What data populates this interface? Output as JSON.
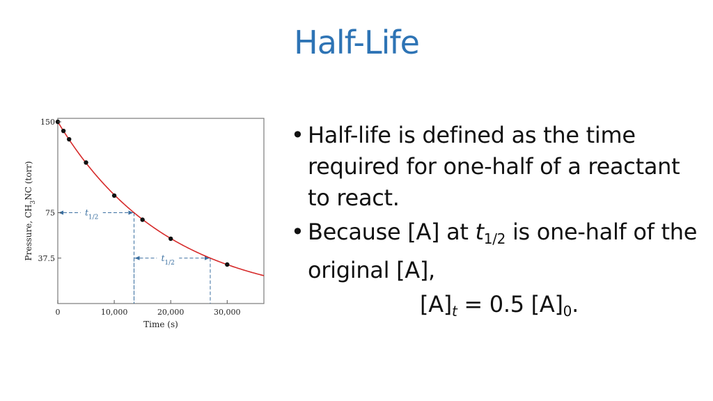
{
  "slide": {
    "title": "Half-Life"
  },
  "bullets": {
    "b1": "Half-life is defined as the time required for one-half of a reactant to react.",
    "b2_pre": "Because [A] at ",
    "b2_t": "t",
    "b2_sub": "1/2",
    "b2_post": " is one-half of the original [A],"
  },
  "equation": {
    "a": "[A]",
    "a_sub": "t",
    "mid": " = 0.5 [A]",
    "end_sub": "0",
    "end": "."
  },
  "chart_data": {
    "type": "scatter",
    "xlabel": "Time (s)",
    "ylabel": "Pressure, CH3NC (torr)",
    "xlim": [
      0,
      36500
    ],
    "ylim": [
      0,
      150
    ],
    "x_ticks": [
      {
        "value": 0,
        "label": "0"
      },
      {
        "value": 10000,
        "label": "10,000"
      },
      {
        "value": 20000,
        "label": "20,000"
      },
      {
        "value": 30000,
        "label": "30,000"
      }
    ],
    "y_ticks": [
      {
        "value": 150,
        "label": "150"
      },
      {
        "value": 75,
        "label": "75"
      },
      {
        "value": 37.5,
        "label": "37.5"
      }
    ],
    "decay_curve": {
      "p0": 150,
      "half_life_s": 13500,
      "color": "#d62a2a"
    },
    "points": {
      "x": [
        0,
        1000,
        2000,
        5000,
        10000,
        15000,
        20000,
        30000
      ],
      "y": [
        150,
        142.5,
        135.6,
        116.4,
        89.1,
        69.2,
        53.5,
        32.2
      ]
    },
    "half_life_markers": [
      {
        "label": "t",
        "sub": "1/2",
        "y": 75,
        "x_start": 0,
        "x_end": 13500
      },
      {
        "label": "t",
        "sub": "1/2",
        "y": 37.5,
        "x_start": 13500,
        "x_end": 27000
      }
    ],
    "marker_color": "#3a6fa0",
    "grid": false
  }
}
